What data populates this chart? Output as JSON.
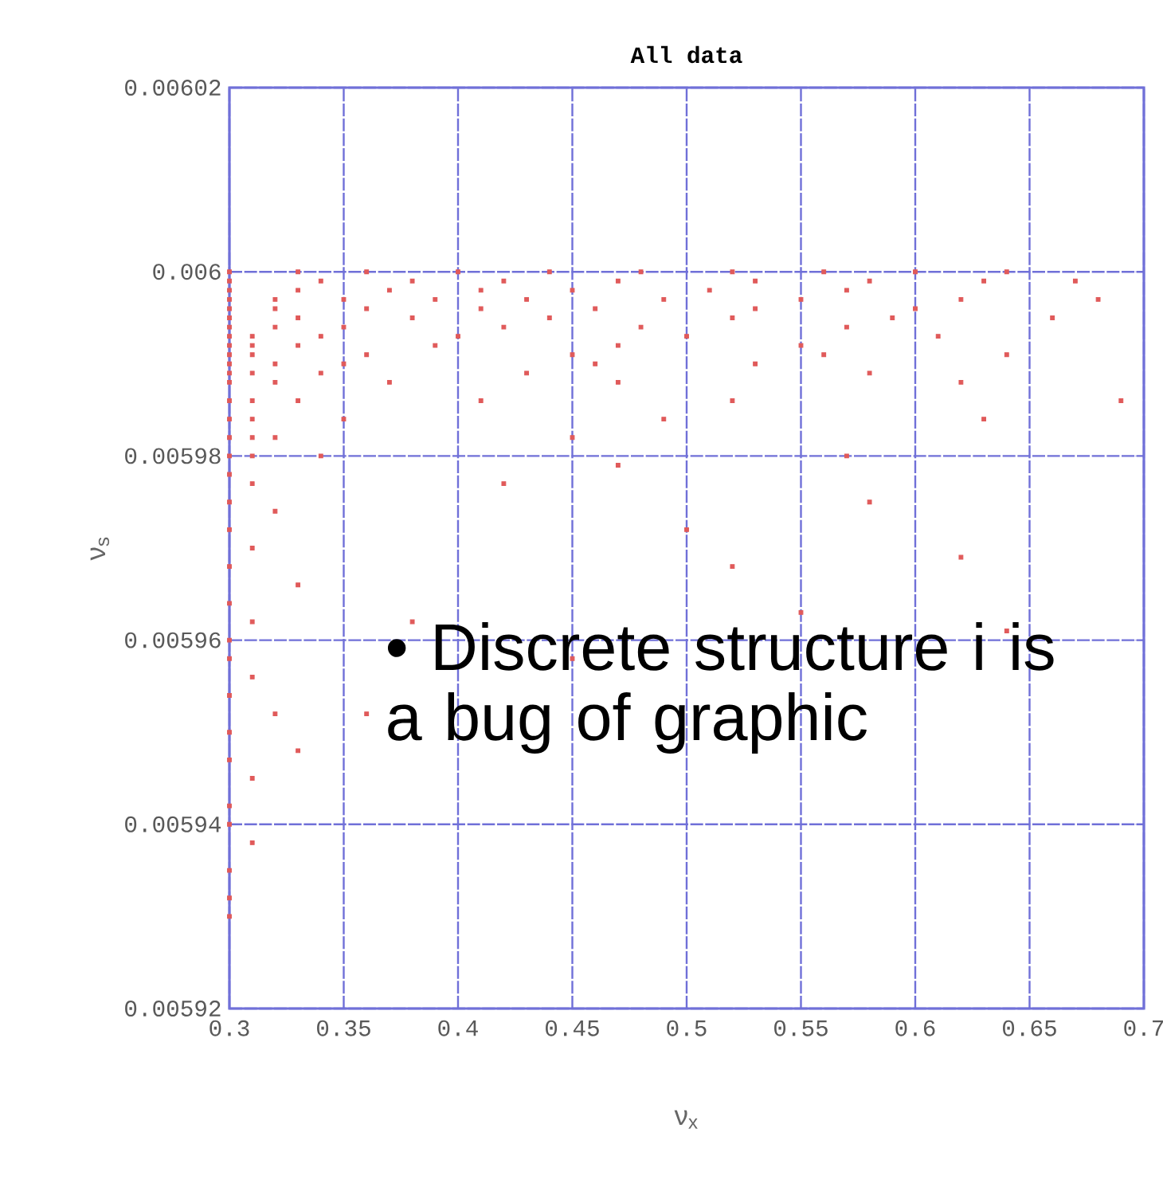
{
  "chart_data": {
    "type": "scatter",
    "title": "All data",
    "xlabel": "ν$_{x}$",
    "ylabel": "ν$_{s}$",
    "annotations": [
      "• Discrete structure i is a bug of graphic"
    ],
    "xlim": [
      0.3,
      0.7
    ],
    "xticks": [
      0.3,
      0.35,
      0.4,
      0.45,
      0.5,
      0.55,
      0.6,
      0.65,
      0.7
    ],
    "ylim": [
      0.00592,
      0.00602
    ],
    "yticks": [
      0.00592,
      0.00594,
      0.00596,
      0.00598,
      0.006,
      0.00602
    ],
    "grid": true,
    "marker": "square",
    "series": [
      {
        "color": "#e05a5a",
        "x": [
          0.3,
          0.33,
          0.36,
          0.4,
          0.44,
          0.48,
          0.52,
          0.56,
          0.6,
          0.64,
          0.3,
          0.34,
          0.38,
          0.42,
          0.47,
          0.53,
          0.58,
          0.63,
          0.67,
          0.3,
          0.33,
          0.37,
          0.41,
          0.45,
          0.51,
          0.57,
          0.3,
          0.32,
          0.35,
          0.39,
          0.43,
          0.49,
          0.55,
          0.62,
          0.68,
          0.3,
          0.32,
          0.36,
          0.41,
          0.46,
          0.53,
          0.6,
          0.3,
          0.33,
          0.38,
          0.44,
          0.52,
          0.59,
          0.66,
          0.3,
          0.32,
          0.35,
          0.42,
          0.48,
          0.57,
          0.3,
          0.31,
          0.34,
          0.4,
          0.5,
          0.61,
          0.3,
          0.31,
          0.33,
          0.39,
          0.47,
          0.55,
          0.3,
          0.31,
          0.36,
          0.45,
          0.56,
          0.64,
          0.3,
          0.32,
          0.35,
          0.46,
          0.53,
          0.3,
          0.31,
          0.34,
          0.43,
          0.58,
          0.3,
          0.32,
          0.37,
          0.47,
          0.62,
          0.3,
          0.31,
          0.33,
          0.41,
          0.52,
          0.3,
          0.31,
          0.35,
          0.49,
          0.63,
          0.3,
          0.31,
          0.32,
          0.45,
          0.3,
          0.31,
          0.34,
          0.57,
          0.3,
          0.31,
          0.3,
          0.32,
          0.3,
          0.31,
          0.3,
          0.33,
          0.3,
          0.31,
          0.3,
          0.3,
          0.31,
          0.3,
          0.32,
          0.3,
          0.3,
          0.31,
          0.3,
          0.3,
          0.31,
          0.3,
          0.3,
          0.3,
          0.42,
          0.5,
          0.52,
          0.55,
          0.58,
          0.62,
          0.64,
          0.38,
          0.45,
          0.36,
          0.33,
          0.47,
          0.69
        ],
        "values": [
          0.006,
          0.006,
          0.006,
          0.006,
          0.006,
          0.006,
          0.006,
          0.006,
          0.006,
          0.006,
          0.005999,
          0.005999,
          0.005999,
          0.005999,
          0.005999,
          0.005999,
          0.005999,
          0.005999,
          0.005999,
          0.005998,
          0.005998,
          0.005998,
          0.005998,
          0.005998,
          0.005998,
          0.005998,
          0.005997,
          0.005997,
          0.005997,
          0.005997,
          0.005997,
          0.005997,
          0.005997,
          0.005997,
          0.005997,
          0.005996,
          0.005996,
          0.005996,
          0.005996,
          0.005996,
          0.005996,
          0.005996,
          0.005995,
          0.005995,
          0.005995,
          0.005995,
          0.005995,
          0.005995,
          0.005995,
          0.005994,
          0.005994,
          0.005994,
          0.005994,
          0.005994,
          0.005994,
          0.005993,
          0.005993,
          0.005993,
          0.005993,
          0.005993,
          0.005993,
          0.005992,
          0.005992,
          0.005992,
          0.005992,
          0.005992,
          0.005992,
          0.005991,
          0.005991,
          0.005991,
          0.005991,
          0.005991,
          0.005991,
          0.00599,
          0.00599,
          0.00599,
          0.00599,
          0.00599,
          0.005989,
          0.005989,
          0.005989,
          0.005989,
          0.005989,
          0.005988,
          0.005988,
          0.005988,
          0.005988,
          0.005988,
          0.005986,
          0.005986,
          0.005986,
          0.005986,
          0.005986,
          0.005984,
          0.005984,
          0.005984,
          0.005984,
          0.005984,
          0.005982,
          0.005982,
          0.005982,
          0.005982,
          0.00598,
          0.00598,
          0.00598,
          0.00598,
          0.005978,
          0.005977,
          0.005975,
          0.005974,
          0.005972,
          0.00597,
          0.005968,
          0.005966,
          0.005964,
          0.005962,
          0.00596,
          0.005958,
          0.005956,
          0.005954,
          0.005952,
          0.00595,
          0.005947,
          0.005945,
          0.005942,
          0.00594,
          0.005938,
          0.005935,
          0.005932,
          0.00593,
          0.005977,
          0.005972,
          0.005968,
          0.005963,
          0.005975,
          0.005969,
          0.005961,
          0.005962,
          0.005958,
          0.005952,
          0.005948,
          0.005979,
          0.005986
        ]
      }
    ]
  }
}
